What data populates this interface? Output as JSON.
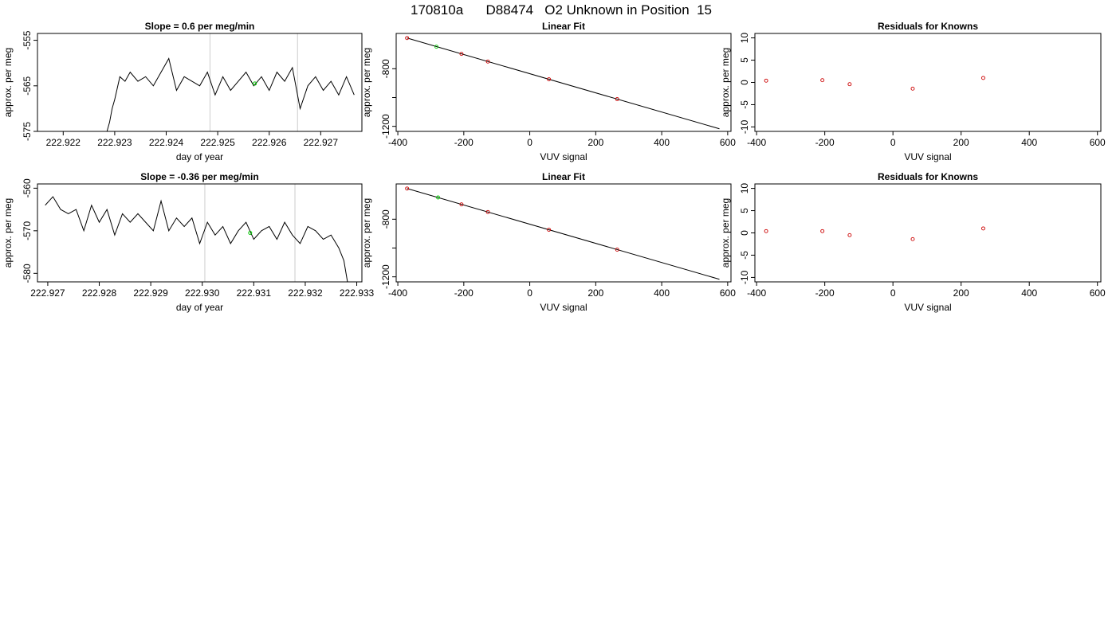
{
  "page": {
    "title": "170810a      D88474   O2 Unknown in Position  15"
  },
  "colors": {
    "axis": "#000000",
    "series_line": "#000000",
    "marker_known": "#cc0000",
    "marker_unknown": "#00cc00",
    "boundary": "#cccccc"
  },
  "chart_data": [
    {
      "type": "line",
      "title": "Slope =  0.6  per meg/min",
      "xlabel": "day of year",
      "ylabel": "approx. per meg",
      "xlim": [
        222.9215,
        222.9278
      ],
      "ylim": [
        -575,
        -553.5
      ],
      "xticks": [
        222.922,
        222.923,
        222.924,
        222.925,
        222.926,
        222.927
      ],
      "xtick_labels": [
        "222.922",
        "222.923",
        "222.924",
        "222.925",
        "222.926",
        "222.927"
      ],
      "yticks": [
        -575,
        -565,
        -555
      ],
      "ytick_labels": [
        "-575",
        "-565",
        "-555"
      ],
      "vlines": [
        222.92485,
        222.92655
      ],
      "grid": false,
      "series": [
        {
          "x": [
            222.92285,
            222.9229,
            222.92295,
            222.923,
            222.9231,
            222.9232,
            222.9233,
            222.92345,
            222.9236,
            222.92375,
            222.9239,
            222.92405,
            222.9242,
            222.92435,
            222.9245,
            222.92465,
            222.9248,
            222.92495,
            222.9251,
            222.92525,
            222.9254,
            222.92555,
            222.9257,
            222.92585,
            222.926,
            222.92615,
            222.9263,
            222.92645,
            222.9266,
            222.92675,
            222.9269,
            222.92705,
            222.9272,
            222.92735,
            222.9275,
            222.92765
          ],
          "y": [
            -575,
            -573,
            -570,
            -568,
            -563,
            -564,
            -562,
            -564,
            -563,
            -565,
            -562,
            -559,
            -566,
            -563,
            -564,
            -565,
            -562,
            -567,
            -563,
            -566,
            -564,
            -562,
            -565,
            -563,
            -566,
            -562,
            -564,
            -561,
            -570,
            -565,
            -563,
            -566,
            -564,
            -567,
            -563,
            -567
          ]
        }
      ],
      "highlight_points": [
        {
          "x": 222.92572,
          "y": -564.5
        }
      ]
    },
    {
      "type": "scatter",
      "title": "Linear Fit",
      "xlabel": "VUV signal",
      "ylabel": "approx. per meg",
      "xlim": [
        -405,
        610
      ],
      "ylim": [
        -1235,
        -555
      ],
      "xticks": [
        -400,
        -200,
        0,
        200,
        400,
        600
      ],
      "xtick_labels": [
        "-400",
        "-200",
        "0",
        "200",
        "400",
        "600"
      ],
      "yticks": [
        -1200,
        -1000,
        -800
      ],
      "ytick_labels": [
        "-1200",
        "",
        "-800"
      ],
      "fit_line": {
        "x": [
          -372,
          575
        ],
        "y": [
          -587,
          -1217
        ]
      },
      "points": [
        {
          "x": -372,
          "y": -587,
          "kind": "known"
        },
        {
          "x": -207,
          "y": -697,
          "kind": "known"
        },
        {
          "x": -127,
          "y": -750,
          "kind": "known"
        },
        {
          "x": 58,
          "y": -873,
          "kind": "known"
        },
        {
          "x": 265,
          "y": -1011,
          "kind": "known"
        },
        {
          "x": -283,
          "y": -647,
          "kind": "unknown"
        }
      ]
    },
    {
      "type": "scatter",
      "title": "Residuals for Knowns",
      "xlabel": "VUV signal",
      "ylabel": "approx. per meg",
      "xlim": [
        -405,
        610
      ],
      "ylim": [
        -11,
        11
      ],
      "xticks": [
        -400,
        -200,
        0,
        200,
        400,
        600
      ],
      "xtick_labels": [
        "-400",
        "-200",
        "0",
        "200",
        "400",
        "600"
      ],
      "yticks": [
        -10,
        -5,
        0,
        5,
        10
      ],
      "ytick_labels": [
        "-10",
        "-5",
        "0",
        "5",
        "10"
      ],
      "points": [
        {
          "x": -372,
          "y": 0.4,
          "kind": "known"
        },
        {
          "x": -207,
          "y": 0.5,
          "kind": "known"
        },
        {
          "x": -127,
          "y": -0.4,
          "kind": "known"
        },
        {
          "x": 58,
          "y": -1.4,
          "kind": "known"
        },
        {
          "x": 265,
          "y": 1.0,
          "kind": "known"
        }
      ]
    },
    {
      "type": "line",
      "title": "Slope =  -0.36  per meg/min",
      "xlabel": "day of year",
      "ylabel": "approx. per meg",
      "xlim": [
        222.9268,
        222.9331
      ],
      "ylim": [
        -582,
        -559
      ],
      "xticks": [
        222.927,
        222.928,
        222.929,
        222.93,
        222.931,
        222.932,
        222.933
      ],
      "xtick_labels": [
        "222.927",
        "222.928",
        "222.929",
        "222.930",
        "222.931",
        "222.932",
        "222.933"
      ],
      "yticks": [
        -580,
        -570,
        -560
      ],
      "ytick_labels": [
        "-580",
        "-570",
        "-560"
      ],
      "vlines": [
        222.93005,
        222.9318
      ],
      "grid": false,
      "series": [
        {
          "x": [
            222.92695,
            222.9271,
            222.92725,
            222.9274,
            222.92755,
            222.9277,
            222.92785,
            222.928,
            222.92815,
            222.9283,
            222.92845,
            222.9286,
            222.92875,
            222.9289,
            222.92905,
            222.9292,
            222.92935,
            222.9295,
            222.92965,
            222.9298,
            222.92995,
            222.9301,
            222.93025,
            222.9304,
            222.93055,
            222.9307,
            222.93085,
            222.931,
            222.93115,
            222.9313,
            222.93145,
            222.9316,
            222.93175,
            222.9319,
            222.93205,
            222.9322,
            222.93235,
            222.9325,
            222.93265,
            222.93275,
            222.93282
          ],
          "y": [
            -564,
            -562,
            -565,
            -566,
            -565,
            -570,
            -564,
            -568,
            -565,
            -571,
            -566,
            -568,
            -566,
            -568,
            -570,
            -563,
            -570,
            -567,
            -569,
            -567,
            -573,
            -568,
            -571,
            -569,
            -573,
            -570,
            -568,
            -572,
            -570,
            -569,
            -572,
            -568,
            -571,
            -573,
            -569,
            -570,
            -572,
            -571,
            -574,
            -577,
            -582
          ]
        }
      ],
      "highlight_points": [
        {
          "x": 222.93093,
          "y": -570.5
        }
      ]
    },
    {
      "type": "scatter",
      "title": "Linear Fit",
      "xlabel": "VUV signal",
      "ylabel": "approx. per meg",
      "xlim": [
        -405,
        610
      ],
      "ylim": [
        -1235,
        -555
      ],
      "xticks": [
        -400,
        -200,
        0,
        200,
        400,
        600
      ],
      "xtick_labels": [
        "-400",
        "-200",
        "0",
        "200",
        "400",
        "600"
      ],
      "yticks": [
        -1200,
        -1000,
        -800
      ],
      "ytick_labels": [
        "-1200",
        "",
        "-800"
      ],
      "fit_line": {
        "x": [
          -372,
          575
        ],
        "y": [
          -587,
          -1217
        ]
      },
      "points": [
        {
          "x": -372,
          "y": -587,
          "kind": "known"
        },
        {
          "x": -207,
          "y": -697,
          "kind": "known"
        },
        {
          "x": -127,
          "y": -750,
          "kind": "known"
        },
        {
          "x": 58,
          "y": -873,
          "kind": "known"
        },
        {
          "x": 265,
          "y": -1011,
          "kind": "known"
        },
        {
          "x": -278,
          "y": -649,
          "kind": "unknown"
        }
      ]
    },
    {
      "type": "scatter",
      "title": "Residuals for Knowns",
      "xlabel": "VUV signal",
      "ylabel": "approx. per meg",
      "xlim": [
        -405,
        610
      ],
      "ylim": [
        -11,
        11
      ],
      "xticks": [
        -400,
        -200,
        0,
        200,
        400,
        600
      ],
      "xtick_labels": [
        "-400",
        "-200",
        "0",
        "200",
        "400",
        "600"
      ],
      "yticks": [
        -10,
        -5,
        0,
        5,
        10
      ],
      "ytick_labels": [
        "-10",
        "-5",
        "0",
        "5",
        "10"
      ],
      "points": [
        {
          "x": -372,
          "y": 0.4,
          "kind": "known"
        },
        {
          "x": -207,
          "y": 0.4,
          "kind": "known"
        },
        {
          "x": -127,
          "y": -0.5,
          "kind": "known"
        },
        {
          "x": 58,
          "y": -1.4,
          "kind": "known"
        },
        {
          "x": 265,
          "y": 1.0,
          "kind": "known"
        }
      ]
    }
  ]
}
